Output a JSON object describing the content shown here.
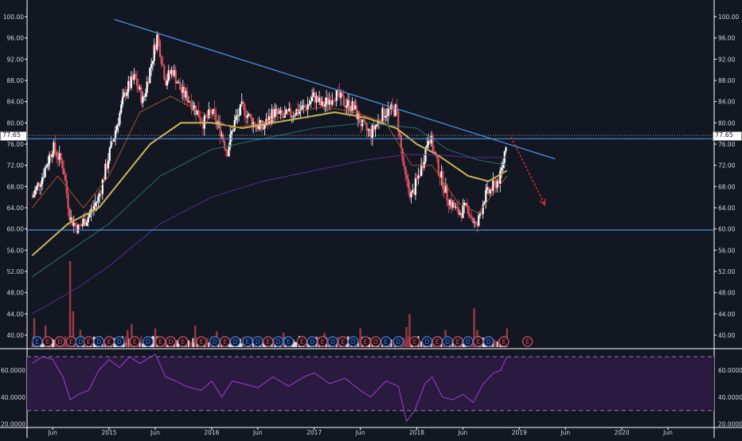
{
  "chart_data": {
    "type": "candlestick",
    "price_axis": {
      "ticks": [
        "100.00",
        "96.00",
        "92.00",
        "88.00",
        "84.00",
        "80.00",
        "76.00",
        "72.00",
        "68.00",
        "64.00",
        "60.00",
        "56.00",
        "52.00",
        "48.00",
        "44.00",
        "40.00"
      ],
      "range": [
        38,
        101
      ]
    },
    "last_price": "77.65",
    "time_axis": {
      "labels": [
        {
          "label": "Jun",
          "t": 2014.45
        },
        {
          "label": "2015",
          "t": 2015.0
        },
        {
          "label": "Jun",
          "t": 2015.45
        },
        {
          "label": "2016",
          "t": 2016.0
        },
        {
          "label": "Jun",
          "t": 2016.45
        },
        {
          "label": "2017",
          "t": 2017.0
        },
        {
          "label": "Jun",
          "t": 2017.45
        },
        {
          "label": "2018",
          "t": 2018.0
        },
        {
          "label": "Jun",
          "t": 2018.45
        },
        {
          "label": "2019",
          "t": 2019.0
        },
        {
          "label": "Jun",
          "t": 2019.45
        },
        {
          "label": "2020",
          "t": 2020.0
        },
        {
          "label": "Jun",
          "t": 2020.45
        }
      ],
      "range": [
        2014.2,
        2020.9
      ]
    },
    "rsi_axis": {
      "ticks": [
        "60.0000",
        "40.0000",
        "20.0000"
      ],
      "range": [
        18,
        76
      ],
      "bands": [
        70,
        30
      ]
    },
    "price_path": [
      [
        2014.25,
        66.0
      ],
      [
        2014.35,
        70.0
      ],
      [
        2014.45,
        75.5
      ],
      [
        2014.55,
        72.0
      ],
      [
        2014.62,
        62.0
      ],
      [
        2014.7,
        60.0
      ],
      [
        2014.8,
        62.5
      ],
      [
        2014.9,
        66.0
      ],
      [
        2015.0,
        74.0
      ],
      [
        2015.08,
        80.0
      ],
      [
        2015.16,
        86.0
      ],
      [
        2015.25,
        88.5
      ],
      [
        2015.33,
        84.0
      ],
      [
        2015.42,
        92.0
      ],
      [
        2015.47,
        96.5
      ],
      [
        2015.55,
        88.0
      ],
      [
        2015.62,
        90.0
      ],
      [
        2015.7,
        86.0
      ],
      [
        2015.8,
        84.0
      ],
      [
        2015.92,
        80.0
      ],
      [
        2016.0,
        82.0
      ],
      [
        2016.08,
        79.0
      ],
      [
        2016.15,
        74.5
      ],
      [
        2016.22,
        80.0
      ],
      [
        2016.3,
        83.0
      ],
      [
        2016.4,
        80.0
      ],
      [
        2016.5,
        79.0
      ],
      [
        2016.6,
        82.0
      ],
      [
        2016.7,
        81.0
      ],
      [
        2016.8,
        82.0
      ],
      [
        2016.92,
        83.0
      ],
      [
        2017.0,
        85.0
      ],
      [
        2017.08,
        83.0
      ],
      [
        2017.2,
        85.5
      ],
      [
        2017.28,
        84.0
      ],
      [
        2017.38,
        83.0
      ],
      [
        2017.48,
        79.0
      ],
      [
        2017.55,
        78.0
      ],
      [
        2017.68,
        82.0
      ],
      [
        2017.8,
        82.5
      ],
      [
        2017.88,
        70.0
      ],
      [
        2017.95,
        66.0
      ],
      [
        2018.05,
        72.0
      ],
      [
        2018.12,
        78.0
      ],
      [
        2018.2,
        72.0
      ],
      [
        2018.3,
        66.0
      ],
      [
        2018.4,
        63.0
      ],
      [
        2018.5,
        64.0
      ],
      [
        2018.58,
        60.0
      ],
      [
        2018.66,
        66.0
      ],
      [
        2018.75,
        68.0
      ],
      [
        2018.82,
        70.0
      ],
      [
        2018.88,
        77.5
      ]
    ],
    "candle_step": 0.014,
    "moving_averages": [
      {
        "color": "#c9b458",
        "points": [
          [
            2014.25,
            55
          ],
          [
            2014.6,
            61
          ],
          [
            2014.9,
            64
          ],
          [
            2015.15,
            70
          ],
          [
            2015.4,
            76
          ],
          [
            2015.7,
            80
          ],
          [
            2016.0,
            80
          ],
          [
            2016.3,
            79
          ],
          [
            2016.6,
            80
          ],
          [
            2016.9,
            81
          ],
          [
            2017.2,
            82
          ],
          [
            2017.5,
            81
          ],
          [
            2017.8,
            79
          ],
          [
            2018.0,
            76
          ],
          [
            2018.2,
            74
          ],
          [
            2018.5,
            70
          ],
          [
            2018.7,
            69
          ],
          [
            2018.88,
            71
          ]
        ]
      },
      {
        "color": "#a05030",
        "points": [
          [
            2014.25,
            64
          ],
          [
            2014.5,
            70
          ],
          [
            2014.75,
            64
          ],
          [
            2015.0,
            70
          ],
          [
            2015.3,
            82
          ],
          [
            2015.6,
            85
          ],
          [
            2015.9,
            82
          ],
          [
            2016.2,
            79
          ],
          [
            2016.5,
            80
          ],
          [
            2016.8,
            82
          ],
          [
            2017.1,
            83
          ],
          [
            2017.4,
            82
          ],
          [
            2017.7,
            80
          ],
          [
            2017.95,
            72
          ],
          [
            2018.15,
            72
          ],
          [
            2018.4,
            65
          ],
          [
            2018.6,
            63
          ],
          [
            2018.88,
            70
          ]
        ]
      },
      {
        "color": "#2a6e66",
        "points": [
          [
            2014.25,
            51
          ],
          [
            2014.7,
            57
          ],
          [
            2015.0,
            61
          ],
          [
            2015.5,
            70
          ],
          [
            2016.0,
            75
          ],
          [
            2016.5,
            77
          ],
          [
            2017.0,
            79
          ],
          [
            2017.5,
            80
          ],
          [
            2018.0,
            79
          ],
          [
            2018.3,
            75
          ],
          [
            2018.6,
            73
          ],
          [
            2018.88,
            72
          ]
        ]
      },
      {
        "color": "#5a2a90",
        "points": [
          [
            2014.25,
            44
          ],
          [
            2014.7,
            49
          ],
          [
            2015.0,
            53
          ],
          [
            2015.5,
            61
          ],
          [
            2016.0,
            66
          ],
          [
            2016.5,
            69
          ],
          [
            2017.0,
            71
          ],
          [
            2017.5,
            73
          ],
          [
            2017.9,
            74
          ],
          [
            2018.2,
            74
          ],
          [
            2018.5,
            73.5
          ],
          [
            2018.88,
            73.5
          ]
        ]
      }
    ],
    "trendline": {
      "from": [
        2015.05,
        99.5
      ],
      "to": [
        2019.35,
        73.2
      ],
      "color": "#4a90e2"
    },
    "horizontal_lines": [
      {
        "price": 77.0,
        "color": "#4a90e2"
      },
      {
        "price": 59.8,
        "color": "#4a90e2"
      }
    ],
    "projection_arrow": {
      "from": [
        2018.92,
        77.3
      ],
      "to": [
        2019.25,
        64.5
      ],
      "color": "#e03040"
    },
    "volume_bars": [
      {
        "t": 2014.27,
        "v": 2
      },
      {
        "t": 2014.38,
        "v": 1.5
      },
      {
        "t": 2014.62,
        "v": 6
      },
      {
        "t": 2014.65,
        "v": 2.5
      },
      {
        "t": 2014.72,
        "v": 1.2
      },
      {
        "t": 2015.18,
        "v": 1.2
      },
      {
        "t": 2015.22,
        "v": 1.6
      },
      {
        "t": 2015.45,
        "v": 1.3
      },
      {
        "t": 2015.84,
        "v": 1.5
      },
      {
        "t": 2016.05,
        "v": 1.1
      },
      {
        "t": 2016.7,
        "v": 1.0
      },
      {
        "t": 2017.1,
        "v": 1.0
      },
      {
        "t": 2017.45,
        "v": 1.3
      },
      {
        "t": 2017.9,
        "v": 1.4
      },
      {
        "t": 2017.93,
        "v": 2.3
      },
      {
        "t": 2018.28,
        "v": 1.2
      },
      {
        "t": 2018.56,
        "v": 2.7
      },
      {
        "t": 2018.59,
        "v": 1.2
      },
      {
        "t": 2018.88,
        "v": 1.3
      }
    ],
    "earnings_markers": [
      {
        "t": 2014.3,
        "label": "E",
        "kind": "blue"
      },
      {
        "t": 2014.4,
        "label": "E",
        "kind": "red"
      },
      {
        "t": 2014.52,
        "label": "D",
        "kind": "red"
      },
      {
        "t": 2014.63,
        "label": "E",
        "kind": "red"
      },
      {
        "t": 2014.72,
        "label": "D",
        "kind": "blue"
      },
      {
        "t": 2014.8,
        "label": "E",
        "kind": "red"
      },
      {
        "t": 2014.9,
        "label": "D",
        "kind": "blue"
      },
      {
        "t": 2015.0,
        "label": "E",
        "kind": "red"
      },
      {
        "t": 2015.1,
        "label": "D",
        "kind": "blue"
      },
      {
        "t": 2015.25,
        "label": "E",
        "kind": "red"
      },
      {
        "t": 2015.38,
        "label": "D",
        "kind": "blue"
      },
      {
        "t": 2015.5,
        "label": "E",
        "kind": "red"
      },
      {
        "t": 2015.6,
        "label": "D",
        "kind": "red"
      },
      {
        "t": 2015.72,
        "label": "E",
        "kind": "red"
      },
      {
        "t": 2015.9,
        "label": "E",
        "kind": "red"
      },
      {
        "t": 2016.03,
        "label": "D",
        "kind": "blue"
      },
      {
        "t": 2016.13,
        "label": "E",
        "kind": "red"
      },
      {
        "t": 2016.23,
        "label": "D",
        "kind": "blue"
      },
      {
        "t": 2016.35,
        "label": "E",
        "kind": "blue"
      },
      {
        "t": 2016.45,
        "label": "D",
        "kind": "blue"
      },
      {
        "t": 2016.55,
        "label": "E",
        "kind": "red"
      },
      {
        "t": 2016.65,
        "label": "D",
        "kind": "blue"
      },
      {
        "t": 2016.75,
        "label": "E",
        "kind": "blue"
      },
      {
        "t": 2016.88,
        "label": "E",
        "kind": "red"
      },
      {
        "t": 2016.98,
        "label": "D",
        "kind": "blue"
      },
      {
        "t": 2017.08,
        "label": "E",
        "kind": "red"
      },
      {
        "t": 2017.18,
        "label": "D",
        "kind": "blue"
      },
      {
        "t": 2017.28,
        "label": "E",
        "kind": "red"
      },
      {
        "t": 2017.38,
        "label": "D",
        "kind": "blue"
      },
      {
        "t": 2017.5,
        "label": "E",
        "kind": "red"
      },
      {
        "t": 2017.6,
        "label": "D",
        "kind": "red"
      },
      {
        "t": 2017.7,
        "label": "E",
        "kind": "blue"
      },
      {
        "t": 2017.82,
        "label": "D",
        "kind": "blue"
      },
      {
        "t": 2017.98,
        "label": "E",
        "kind": "red"
      },
      {
        "t": 2018.1,
        "label": "D",
        "kind": "blue"
      },
      {
        "t": 2018.2,
        "label": "E",
        "kind": "red"
      },
      {
        "t": 2018.3,
        "label": "D",
        "kind": "blue"
      },
      {
        "t": 2018.4,
        "label": "E",
        "kind": "red"
      },
      {
        "t": 2018.5,
        "label": "D",
        "kind": "blue"
      },
      {
        "t": 2018.6,
        "label": "E",
        "kind": "red"
      },
      {
        "t": 2018.7,
        "label": "D",
        "kind": "blue"
      },
      {
        "t": 2018.85,
        "label": "E",
        "kind": "red"
      },
      {
        "t": 2019.08,
        "label": "E",
        "kind": "red"
      }
    ],
    "rsi_path": [
      [
        2014.25,
        65
      ],
      [
        2014.35,
        70
      ],
      [
        2014.45,
        68
      ],
      [
        2014.55,
        55
      ],
      [
        2014.62,
        38
      ],
      [
        2014.7,
        42
      ],
      [
        2014.8,
        45
      ],
      [
        2014.9,
        60
      ],
      [
        2015.0,
        68
      ],
      [
        2015.1,
        62
      ],
      [
        2015.2,
        70
      ],
      [
        2015.3,
        65
      ],
      [
        2015.45,
        72
      ],
      [
        2015.55,
        55
      ],
      [
        2015.65,
        52
      ],
      [
        2015.75,
        48
      ],
      [
        2015.9,
        45
      ],
      [
        2016.0,
        52
      ],
      [
        2016.1,
        40
      ],
      [
        2016.2,
        52
      ],
      [
        2016.3,
        50
      ],
      [
        2016.45,
        47
      ],
      [
        2016.6,
        55
      ],
      [
        2016.75,
        48
      ],
      [
        2016.9,
        55
      ],
      [
        2017.0,
        58
      ],
      [
        2017.15,
        50
      ],
      [
        2017.3,
        54
      ],
      [
        2017.45,
        45
      ],
      [
        2017.55,
        40
      ],
      [
        2017.7,
        52
      ],
      [
        2017.82,
        48
      ],
      [
        2017.9,
        22
      ],
      [
        2017.98,
        30
      ],
      [
        2018.08,
        50
      ],
      [
        2018.15,
        55
      ],
      [
        2018.25,
        40
      ],
      [
        2018.35,
        38
      ],
      [
        2018.45,
        42
      ],
      [
        2018.55,
        36
      ],
      [
        2018.65,
        50
      ],
      [
        2018.75,
        58
      ],
      [
        2018.82,
        60
      ],
      [
        2018.88,
        70
      ]
    ]
  }
}
